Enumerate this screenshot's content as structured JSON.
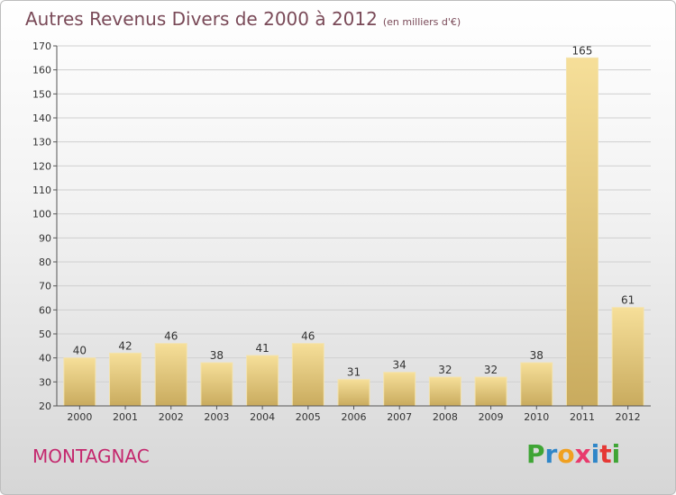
{
  "header": {
    "title": "Autres Revenus Divers de 2000 à 2012",
    "unit": "(en milliers d'€)"
  },
  "footer": {
    "city": "MONTAGNAC",
    "logo": "Proxiti"
  },
  "chart_data": {
    "type": "bar",
    "title": "Autres Revenus Divers de 2000 à 2012",
    "subtitle": "(en milliers d'€)",
    "categories": [
      "2000",
      "2001",
      "2002",
      "2003",
      "2004",
      "2005",
      "2006",
      "2007",
      "2008",
      "2009",
      "2010",
      "2011",
      "2012"
    ],
    "values": [
      40,
      42,
      46,
      38,
      41,
      46,
      31,
      34,
      32,
      32,
      38,
      165,
      61
    ],
    "ylim": [
      20,
      170
    ],
    "yticks": [
      20,
      30,
      40,
      50,
      60,
      70,
      80,
      90,
      100,
      110,
      120,
      130,
      140,
      150,
      160,
      170
    ],
    "grid": true,
    "bar_color": "#e5c97a",
    "xlabel": "",
    "ylabel": ""
  }
}
